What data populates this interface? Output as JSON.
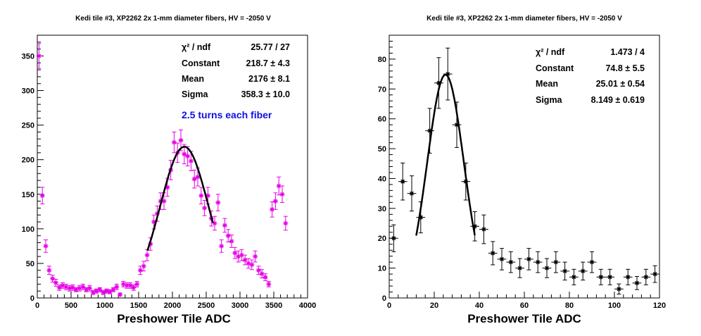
{
  "chart_data": [
    {
      "type": "scatter",
      "title": "Kedi tile #3, XP2262 2x 1-mm diameter fibers, HV = -2050 V",
      "xlabel": "Preshower Tile ADC",
      "ylabel": "",
      "xlim": [
        0,
        4000
      ],
      "ylim": [
        0,
        380
      ],
      "xticks": [
        0,
        500,
        1000,
        1500,
        2000,
        2500,
        3000,
        3500,
        4000
      ],
      "yticks": [
        0,
        50,
        100,
        150,
        200,
        250,
        300,
        350
      ],
      "marker_color": "#e600e6",
      "fit_color": "#000000",
      "bin_half_width": 25,
      "series": [
        {
          "x": [
            25,
            75,
            125,
            175,
            225,
            275,
            325,
            375,
            425,
            475,
            525,
            575,
            625,
            675,
            725,
            775,
            825,
            875,
            925,
            975,
            1025,
            1075,
            1125,
            1175,
            1225,
            1275,
            1325,
            1375,
            1425,
            1475,
            1525,
            1575,
            1625,
            1675,
            1725,
            1775,
            1825,
            1875,
            1925,
            1975,
            2025,
            2075,
            2125,
            2175,
            2225,
            2275,
            2325,
            2375,
            2425,
            2475,
            2525,
            2575,
            2625,
            2675,
            2725,
            2775,
            2825,
            2875,
            2925,
            2975,
            3025,
            3075,
            3125,
            3175,
            3225,
            3275,
            3325,
            3375,
            3425,
            3475,
            3525,
            3575,
            3625,
            3675
          ],
          "y": [
            350,
            148,
            75,
            40,
            28,
            22,
            15,
            18,
            16,
            14,
            15,
            12,
            14,
            16,
            12,
            14,
            8,
            10,
            12,
            8,
            10,
            9,
            12,
            16,
            5,
            20,
            18,
            18,
            15,
            20,
            40,
            46,
            62,
            78,
            110,
            122,
            140,
            140,
            160,
            185,
            225,
            210,
            228,
            208,
            205,
            198,
            172,
            175,
            148,
            130,
            148,
            115,
            108,
            138,
            75,
            105,
            90,
            82,
            65,
            60,
            62,
            55,
            50,
            48,
            60,
            40,
            35,
            30,
            20,
            128,
            140,
            162,
            150,
            108
          ],
          "yerr": [
            18,
            12,
            9,
            6,
            5,
            5,
            4,
            4,
            4,
            4,
            4,
            3,
            4,
            4,
            3,
            4,
            3,
            3,
            3,
            3,
            3,
            3,
            3,
            4,
            2,
            4,
            4,
            4,
            4,
            4,
            6,
            7,
            8,
            9,
            10,
            11,
            12,
            12,
            13,
            14,
            15,
            14,
            15,
            14,
            14,
            14,
            13,
            13,
            12,
            11,
            12,
            11,
            10,
            12,
            9,
            10,
            9,
            9,
            8,
            8,
            8,
            7,
            7,
            7,
            8,
            6,
            6,
            5,
            4,
            11,
            12,
            13,
            12,
            10
          ]
        }
      ],
      "fit": {
        "mean": 2176,
        "sigma": 358.3,
        "constant": 218.7,
        "xmin": 1630,
        "xmax": 2600
      },
      "stats": [
        {
          "label": "χ² / ndf",
          "value": "25.77 / 27"
        },
        {
          "label": "Constant",
          "value": "218.7 ± 4.3"
        },
        {
          "label": "Mean",
          "value": "2176 ± 8.1"
        },
        {
          "label": "Sigma",
          "value": "358.3 ± 10.0"
        }
      ],
      "annotation": "2.5 turns each fiber",
      "annotation_color": "#1010e0"
    },
    {
      "type": "scatter",
      "title": "Kedi tile #3, XP2262 2x 1-mm diameter fibers, HV = -2050 V",
      "xlabel": "Preshower Tile ADC",
      "ylabel": "",
      "xlim": [
        0,
        120
      ],
      "ylim": [
        0,
        88
      ],
      "xticks": [
        0,
        20,
        40,
        60,
        80,
        100,
        120
      ],
      "yticks": [
        0,
        10,
        20,
        30,
        40,
        50,
        60,
        70,
        80
      ],
      "marker_color": "#000000",
      "fit_color": "#000000",
      "bin_half_width": 2,
      "series": [
        {
          "x": [
            2,
            6,
            10,
            14,
            18,
            22,
            26,
            30,
            34,
            38,
            42,
            46,
            50,
            54,
            58,
            62,
            66,
            70,
            74,
            78,
            82,
            86,
            90,
            94,
            98,
            102,
            106,
            110,
            114,
            118
          ],
          "y": [
            20,
            39,
            35,
            27,
            56,
            72,
            75,
            58,
            39,
            24,
            23,
            15,
            13,
            12,
            10,
            13,
            12,
            10,
            12,
            9,
            7,
            9,
            12,
            7,
            7,
            3,
            7,
            5,
            7,
            8
          ],
          "yerr": [
            4.5,
            6.2,
            5.9,
            5.2,
            7.5,
            8.5,
            8.7,
            7.6,
            6.2,
            4.9,
            4.8,
            3.9,
            3.6,
            3.5,
            3.2,
            3.6,
            3.5,
            3.2,
            3.5,
            3.0,
            2.6,
            3.0,
            3.5,
            2.6,
            2.6,
            1.7,
            2.6,
            2.2,
            2.6,
            2.8
          ]
        }
      ],
      "fit": {
        "mean": 25.01,
        "sigma": 8.149,
        "constant": 74.8,
        "xmin": 12,
        "xmax": 38
      },
      "stats": [
        {
          "label": "χ² / ndf",
          "value": "1.473 / 4"
        },
        {
          "label": "Constant",
          "value": "74.8 ± 5.5"
        },
        {
          "label": "Mean",
          "value": "25.01 ± 0.54"
        },
        {
          "label": "Sigma",
          "value": "8.149 ± 0.619"
        }
      ]
    }
  ]
}
